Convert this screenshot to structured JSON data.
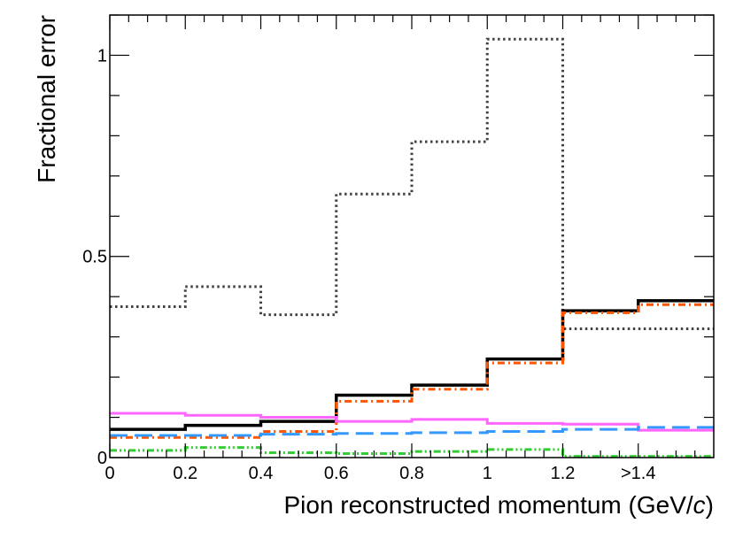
{
  "chart_data": {
    "type": "line",
    "style": "step",
    "xlabel": "Pion reconstructed momentum (GeV/",
    "xlabel_italic_suffix": "c",
    "xlabel_close": ")",
    "ylabel": "Fractional error",
    "xlim": [
      0,
      1.6
    ],
    "ylim": [
      0,
      1.1
    ],
    "x_ticks": [
      {
        "value": 0,
        "label": "0"
      },
      {
        "value": 0.2,
        "label": "0.2"
      },
      {
        "value": 0.4,
        "label": "0.4"
      },
      {
        "value": 0.6,
        "label": "0.6"
      },
      {
        "value": 0.8,
        "label": "0.8"
      },
      {
        "value": 1.0,
        "label": "1"
      },
      {
        "value": 1.2,
        "label": "1.2"
      },
      {
        "value": 1.4,
        "label": ">1.4"
      }
    ],
    "y_ticks": [
      {
        "value": 0,
        "label": "0"
      },
      {
        "value": 0.5,
        "label": "0.5"
      },
      {
        "value": 1.0,
        "label": "1"
      }
    ],
    "grid": false,
    "bin_edges": [
      0,
      0.2,
      0.4,
      0.6,
      0.8,
      1.0,
      1.2,
      1.4,
      1.6
    ],
    "series": [
      {
        "color": "#424242",
        "dash": "dotted",
        "values": [
          0.375,
          0.425,
          0.355,
          0.655,
          0.785,
          1.04,
          0.32,
          0.32
        ]
      },
      {
        "color": "#000000",
        "dash": "solid",
        "values": [
          0.07,
          0.08,
          0.09,
          0.155,
          0.18,
          0.245,
          0.365,
          0.39
        ]
      },
      {
        "color": "#ff5500",
        "dash": "dashdot",
        "values": [
          0.05,
          0.05,
          0.065,
          0.14,
          0.17,
          0.235,
          0.36,
          0.38
        ]
      },
      {
        "color": "#ff66ff",
        "dash": "solid",
        "values": [
          0.11,
          0.105,
          0.1,
          0.09,
          0.095,
          0.085,
          0.083,
          0.068
        ]
      },
      {
        "color": "#3399ff",
        "dash": "longdash",
        "values": [
          0.055,
          0.055,
          0.058,
          0.06,
          0.062,
          0.065,
          0.07,
          0.075
        ]
      },
      {
        "color": "#33cc33",
        "dash": "dashdotdot",
        "values": [
          0.018,
          0.025,
          0.012,
          0.01,
          0.015,
          0.02,
          0.003,
          0.003
        ]
      }
    ]
  }
}
